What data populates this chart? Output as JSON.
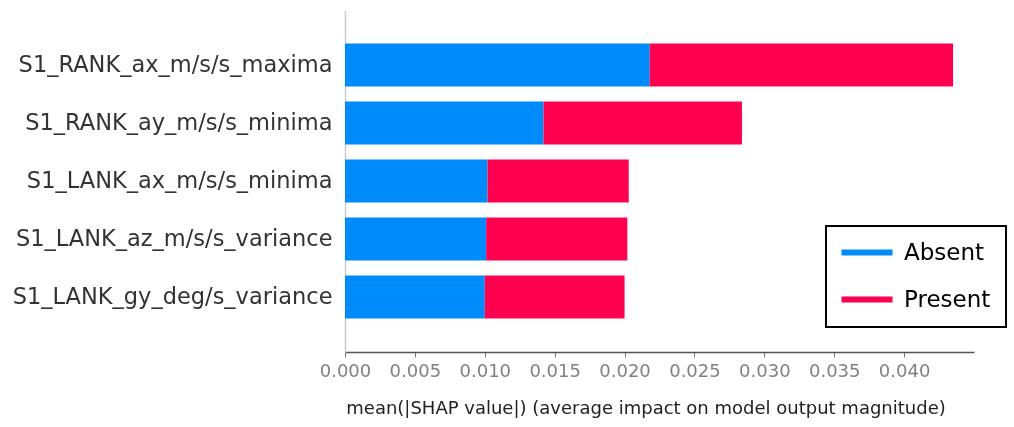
{
  "chart_data": {
    "type": "bar",
    "orientation": "horizontal",
    "stacked": true,
    "categories": [
      "S1_RANK_ax_m/s/s_maxima",
      "S1_RANK_ay_m/s/s_minima",
      "S1_LANK_ax_m/s/s_minima",
      "S1_LANK_az_m/s/s_variance",
      "S1_LANK_gy_deg/s_variance"
    ],
    "series": [
      {
        "name": "Absent",
        "color": "#008bfb",
        "values": [
          0.0218,
          0.0142,
          0.0102,
          0.0101,
          0.01
        ]
      },
      {
        "name": "Present",
        "color": "#ff0051",
        "values": [
          0.0217,
          0.0142,
          0.0101,
          0.0101,
          0.01
        ]
      }
    ],
    "xlim": [
      0,
      0.045
    ],
    "xticks": [
      {
        "value": 0,
        "label": "0.000"
      },
      {
        "value": 0.005,
        "label": "0.005"
      },
      {
        "value": 0.01,
        "label": "0.010"
      },
      {
        "value": 0.015,
        "label": "0.015"
      },
      {
        "value": 0.02,
        "label": "0.020"
      },
      {
        "value": 0.025,
        "label": "0.025"
      },
      {
        "value": 0.03,
        "label": "0.030"
      },
      {
        "value": 0.035,
        "label": "0.035"
      },
      {
        "value": 0.04,
        "label": "0.040"
      }
    ],
    "xlabel": "mean(|SHAP value|) (average impact on model output magnitude)",
    "legend": "bottom right"
  }
}
